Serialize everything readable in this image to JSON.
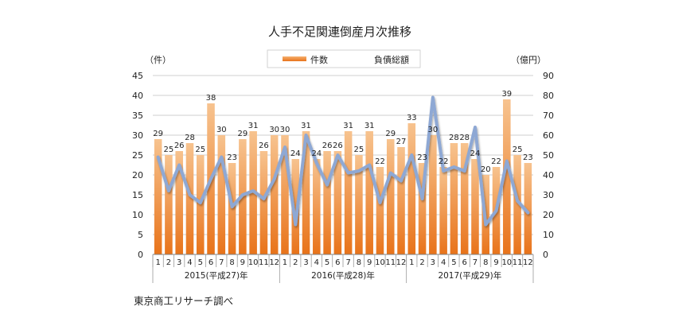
{
  "chart_data": {
    "type": "bar",
    "title": "人手不足関連倒産月次推移",
    "left_axis_unit": "（件）",
    "right_axis_unit": "（億円）",
    "ylim_left": [
      0,
      45
    ],
    "yticks_left": [
      0,
      5,
      10,
      15,
      20,
      25,
      30,
      35,
      40,
      45
    ],
    "ylim_right": [
      0,
      90
    ],
    "yticks_right": [
      0,
      10,
      20,
      30,
      40,
      50,
      60,
      70,
      80,
      90
    ],
    "grid": true,
    "legend_position": "top-center",
    "categories": [
      "1",
      "2",
      "3",
      "4",
      "5",
      "6",
      "7",
      "8",
      "9",
      "10",
      "11",
      "12",
      "1",
      "2",
      "3",
      "4",
      "5",
      "6",
      "7",
      "8",
      "9",
      "10",
      "11",
      "12",
      "1",
      "2",
      "3",
      "4",
      "5",
      "6",
      "7",
      "8",
      "9",
      "10",
      "11",
      "12"
    ],
    "year_groups": [
      {
        "label": "2015(平成27)年",
        "start": 0,
        "count": 12
      },
      {
        "label": "2016(平成28)年",
        "start": 12,
        "count": 12
      },
      {
        "label": "2017(平成29)年",
        "start": 24,
        "count": 12
      }
    ],
    "series": [
      {
        "name": "件数",
        "kind": "bar",
        "axis": "left",
        "color": "#ea7a1e",
        "values": [
          29,
          25,
          26,
          28,
          25,
          38,
          30,
          23,
          29,
          31,
          26,
          30,
          30,
          24,
          31,
          24,
          26,
          26,
          31,
          25,
          31,
          22,
          29,
          27,
          33,
          23,
          30,
          22,
          28,
          28,
          24,
          20,
          22,
          39,
          25,
          23
        ]
      },
      {
        "name": "負債総額",
        "kind": "line",
        "axis": "right",
        "color": "#8ea8d4",
        "values": [
          49,
          32,
          45,
          30,
          26,
          38,
          49,
          24,
          30,
          32,
          28,
          38,
          54,
          15,
          60,
          46,
          35,
          50,
          41,
          42,
          45,
          26,
          41,
          37,
          50,
          28,
          79,
          42,
          44,
          42,
          64,
          15,
          22,
          47,
          27,
          21
        ]
      }
    ]
  },
  "footnote": "東京商工リサーチ調べ"
}
